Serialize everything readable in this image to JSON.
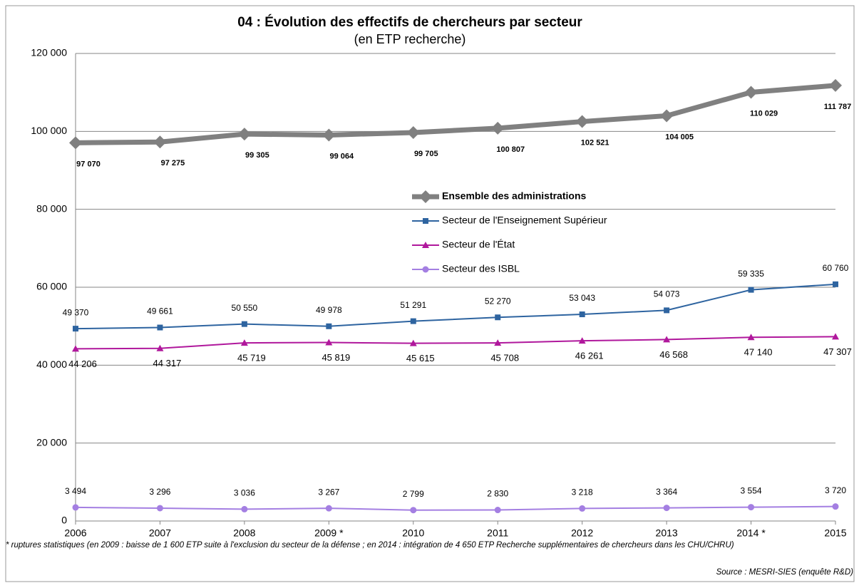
{
  "chart_data": {
    "type": "line",
    "title": "04 : Évolution des effectifs de chercheurs par secteur",
    "subtitle": "(en ETP recherche)",
    "categories": [
      "2006",
      "2007",
      "2008",
      "2009 *",
      "2010",
      "2011",
      "2012",
      "2013",
      "2014 *",
      "2015"
    ],
    "series": [
      {
        "name": "Ensemble des administrations",
        "color": "#808080",
        "marker": "diamond",
        "values": [
          97070,
          97275,
          99305,
          99064,
          99705,
          100807,
          102521,
          104005,
          110029,
          111787
        ],
        "value_labels": [
          "97 070",
          "97 275",
          "99 305",
          "99 064",
          "99 705",
          "100 807",
          "102 521",
          "104 005",
          "110 029",
          "111 787"
        ]
      },
      {
        "name": "Secteur de l'Enseignement Supérieur",
        "color": "#2e64a0",
        "marker": "square",
        "values": [
          49370,
          49661,
          50550,
          49978,
          51291,
          52270,
          53043,
          54073,
          59335,
          60760
        ],
        "value_labels": [
          "49 370",
          "49 661",
          "50 550",
          "49 978",
          "51 291",
          "52 270",
          "53 043",
          "54 073",
          "59 335",
          "60 760"
        ]
      },
      {
        "name": "Secteur de l'État",
        "color": "#b0189c",
        "marker": "triangle",
        "values": [
          44206,
          44317,
          45719,
          45819,
          45615,
          45708,
          46261,
          46568,
          47140,
          47307
        ],
        "value_labels": [
          "44 206",
          "44 317",
          "45 719",
          "45 819",
          "45 615",
          "45 708",
          "46 261",
          "46 568",
          "47 140",
          "47 307"
        ]
      },
      {
        "name": "Secteur des ISBL",
        "color": "#a47fe2",
        "marker": "circle",
        "values": [
          3494,
          3296,
          3036,
          3267,
          2799,
          2830,
          3218,
          3364,
          3554,
          3720
        ],
        "value_labels": [
          "3 494",
          "3 296",
          "3 036",
          "3 267",
          "2 799",
          "2 830",
          "3 218",
          "3 364",
          "3 554",
          "3 720"
        ]
      }
    ],
    "ylim": [
      0,
      120000
    ],
    "yticks": [
      0,
      {
        "value": 20000,
        "label": "20 000"
      },
      {
        "value": 40000,
        "label": "40 000"
      },
      {
        "value": 60000,
        "label": "60 000"
      },
      {
        "value": 80000,
        "label": "80 000"
      },
      {
        "value": 100000,
        "label": "100 000"
      },
      {
        "value": 120000,
        "label": "120 000"
      }
    ],
    "grid": true,
    "note": "* ruptures statistiques (en 2009 : baisse de 1 600 ETP suite à l'exclusion du secteur de la défense ; en 2014 : intégration de 4 650 ETP Recherche supplémentaires de chercheurs dans les CHU/CHRU)",
    "source": "Source : MESRI-SIES  (enquête R&D)"
  }
}
